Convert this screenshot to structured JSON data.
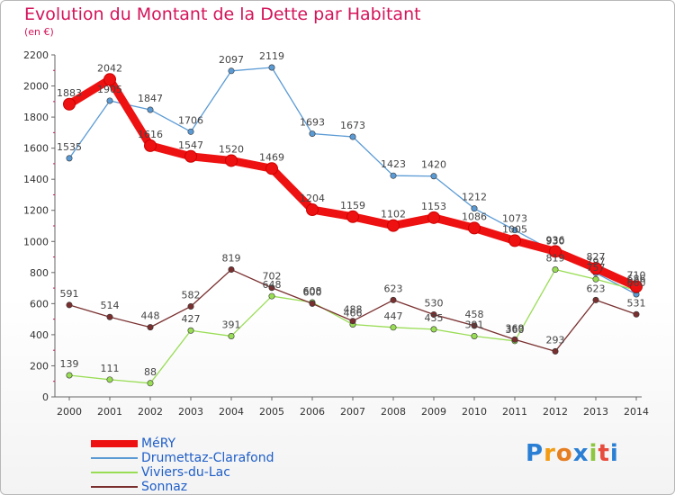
{
  "title": "Evolution du Montant de la Dette par Habitant",
  "subtitle": "(en €)",
  "logo_text": "Proxiti",
  "chart_data": {
    "type": "line",
    "x": [
      "2000",
      "2001",
      "2002",
      "2003",
      "2004",
      "2005",
      "2006",
      "2007",
      "2008",
      "2009",
      "2010",
      "2011",
      "2012",
      "2013",
      "2014"
    ],
    "ylim": [
      0,
      2200
    ],
    "yticks": [
      0,
      200,
      400,
      600,
      800,
      1000,
      1200,
      1400,
      1600,
      1800,
      2000,
      2200
    ],
    "grid": false,
    "legend_position": "bottom-left",
    "series": [
      {
        "name": "MéRY",
        "color": "#ee1111",
        "emphasis": true,
        "values": [
          1883,
          2042,
          1616,
          1547,
          1520,
          1469,
          1204,
          1159,
          1102,
          1153,
          1086,
          1005,
          936,
          827,
          710
        ]
      },
      {
        "name": "Drumettaz-Clarafond",
        "color": "#5b9bd5",
        "values": [
          1535,
          1905,
          1847,
          1706,
          2097,
          2119,
          1693,
          1673,
          1423,
          1420,
          1212,
          1073,
          930,
          797,
          660
        ]
      },
      {
        "name": "Viviers-du-Lac",
        "color": "#99dd55",
        "values": [
          139,
          111,
          88,
          427,
          391,
          648,
          608,
          466,
          447,
          435,
          391,
          360,
          819,
          757,
          686
        ]
      },
      {
        "name": "Sonnaz",
        "color": "#7a2f2f",
        "values": [
          591,
          514,
          448,
          582,
          819,
          702,
          600,
          488,
          623,
          530,
          458,
          369,
          293,
          623,
          531
        ]
      }
    ]
  }
}
